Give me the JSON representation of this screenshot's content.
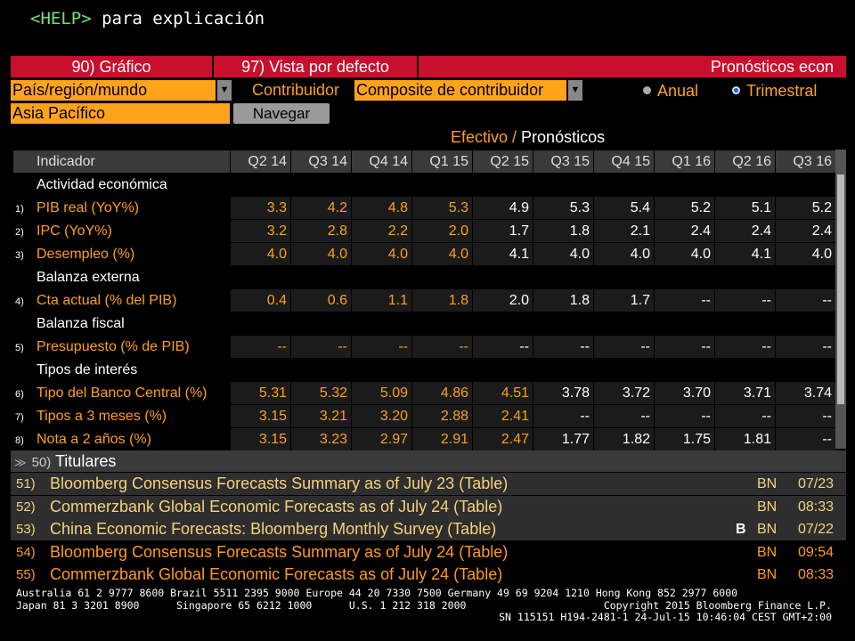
{
  "help": {
    "key": "<HELP>",
    "text": "para explicación"
  },
  "toolbar": {
    "chart": {
      "number": "90)",
      "label": "Gráfico"
    },
    "default_view": {
      "number": "97)",
      "label": "Vista por defecto"
    },
    "title": "Pronósticos econ"
  },
  "filters": {
    "region": "País/región/mundo",
    "contributor_label": "Contribuidor",
    "contributor": "Composite de contribuidor",
    "frequency": {
      "options": [
        "Anual",
        "Trimestral"
      ],
      "selected": 1
    },
    "area": "Asia Pacífico",
    "browse": "Navegar"
  },
  "legend": {
    "actual": "Efectivo /",
    "forecast": "Pronósticos"
  },
  "table": {
    "columns": [
      "Indicador",
      "Q2 14",
      "Q3 14",
      "Q4 14",
      "Q1 15",
      "Q2 15",
      "Q3 15",
      "Q4 15",
      "Q1 16",
      "Q2 16",
      "Q3 16"
    ],
    "rows": [
      {
        "label": "Actividad económica"
      },
      {
        "number": "1)",
        "label": "PIB real (YoY%)",
        "values": [
          "3.3",
          "4.2",
          "4.8",
          "5.3",
          "4.9",
          "5.3",
          "5.4",
          "5.2",
          "5.1",
          "5.2"
        ]
      },
      {
        "number": "2)",
        "label": "IPC (YoY%)",
        "values": [
          "3.2",
          "2.8",
          "2.2",
          "2.0",
          "1.7",
          "1.8",
          "2.1",
          "2.4",
          "2.4",
          "2.4"
        ]
      },
      {
        "number": "3)",
        "label": "Desempleo (%)",
        "values": [
          "4.0",
          "4.0",
          "4.0",
          "4.0",
          "4.1",
          "4.0",
          "4.0",
          "4.0",
          "4.1",
          "4.0"
        ]
      },
      {
        "label": "Balanza externa"
      },
      {
        "number": "4)",
        "label": "Cta actual (% del PIB)",
        "values": [
          "0.4",
          "0.6",
          "1.1",
          "1.8",
          "2.0",
          "1.8",
          "1.7",
          "--",
          "--",
          "--"
        ]
      },
      {
        "label": "Balanza fiscal"
      },
      {
        "number": "5)",
        "label": "Presupuesto (% de PIB)",
        "values": [
          "--",
          "--",
          "--",
          "--",
          "--",
          "--",
          "--",
          "--",
          "--",
          "--"
        ]
      },
      {
        "label": "Tipos de interés"
      },
      {
        "number": "6)",
        "label": "Tipo del Banco Central (%)",
        "values": [
          "5.31",
          "5.32",
          "5.09",
          "4.86",
          "4.51",
          "3.78",
          "3.72",
          "3.70",
          "3.71",
          "3.74"
        ]
      },
      {
        "number": "7)",
        "label": "Tipos a 3 meses (%)",
        "values": [
          "3.15",
          "3.21",
          "3.20",
          "2.88",
          "2.41",
          "--",
          "--",
          "--",
          "--",
          "--"
        ]
      },
      {
        "number": "8)",
        "label": "Nota a 2 años (%)",
        "values": [
          "3.15",
          "3.23",
          "2.97",
          "2.91",
          "2.47",
          "1.77",
          "1.82",
          "1.75",
          "1.81",
          "--"
        ]
      }
    ]
  },
  "headlines": {
    "number": "50)",
    "title": "Titulares",
    "items": [
      {
        "number": "51)",
        "title": "Bloomberg Consensus Forecasts Summary as of July 23 (Table)",
        "source": "BN",
        "time": "07/23"
      },
      {
        "number": "52)",
        "title": "Commerzbank Global Economic Forecasts as of July 24 (Table)",
        "source": "BN",
        "time": "08:33"
      },
      {
        "number": "53)",
        "title": "China Economic Forecasts: Bloomberg Monthly Survey (Table)",
        "flag": "B",
        "source": "BN",
        "time": "07/22"
      },
      {
        "number": "54)",
        "title": "Bloomberg Consensus Forecasts Summary as of July 24 (Table)",
        "source": "BN",
        "time": "09:54"
      },
      {
        "number": "55)",
        "title": "Commerzbank Global Economic Forecasts as of July 24 (Table)",
        "source": "BN",
        "time": "08:33"
      }
    ]
  },
  "footer": {
    "lines": [
      "Australia 61 2 9777 8600 Brazil 5511 2395 9000 Europe 44 20 7330 7500 Germany 49 69 9204 1210 Hong Kong 852 2977 6000",
      "Japan 81 3 3201 8900      Singapore 65 6212 1000      U.S. 1 212 318 2000",
      "Copyright 2015 Bloomberg Finance L.P.",
      "SN 115151 H194-2481-1 24-Jul-15 10:46:04 CEST GMT+2:00"
    ]
  }
}
